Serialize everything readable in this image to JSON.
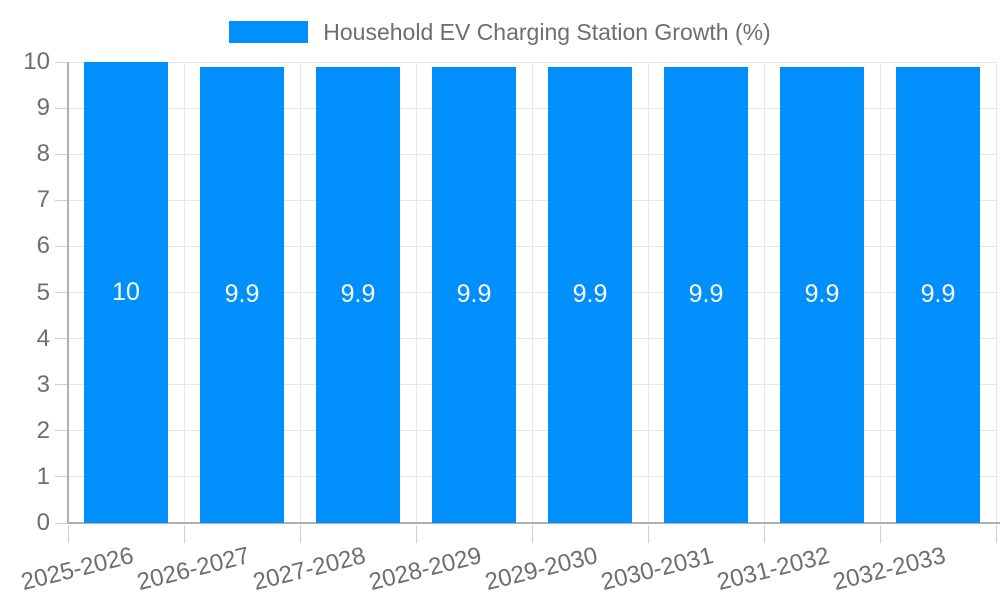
{
  "chart_data": {
    "type": "bar",
    "title": "Household EV Charging Station Growth (%)",
    "categories": [
      "2025-2026",
      "2026-2027",
      "2027-2028",
      "2028-2029",
      "2029-2030",
      "2030-2031",
      "2031-2032",
      "2032-2033"
    ],
    "values": [
      10,
      9.9,
      9.9,
      9.9,
      9.9,
      9.9,
      9.9,
      9.9
    ],
    "bar_labels": [
      "10",
      "9.9",
      "9.9",
      "9.9",
      "9.9",
      "9.9",
      "9.9",
      "9.9"
    ],
    "xlabel": "",
    "ylabel": "",
    "ylim": [
      0,
      10
    ],
    "yticks": [
      0,
      1,
      2,
      3,
      4,
      5,
      6,
      7,
      8,
      9,
      10
    ],
    "grid": true,
    "legend_position": "top",
    "x_label_rotation_deg": -14,
    "colors": {
      "bar": "#008FFB",
      "grid": "#e7e7e7",
      "axis": "#b0b0b0",
      "tick": "#cfcfcf",
      "label": "#6e6e6e",
      "data_label": "#ffffff",
      "background": "#ffffff"
    }
  }
}
